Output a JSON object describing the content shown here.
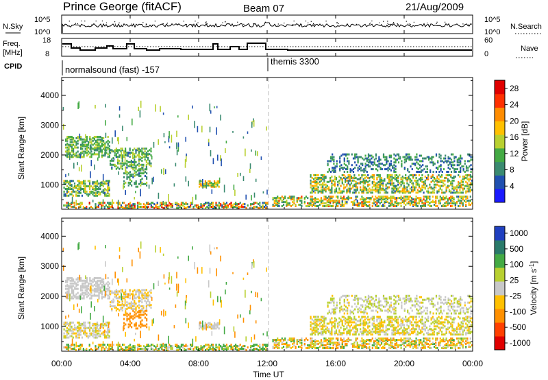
{
  "header": {
    "station": "Prince George (fitACF)",
    "beam": "Beam 07",
    "date": "21/Aug/2009"
  },
  "top_strip": {
    "left_label": "N.Sky",
    "right_label": "N.Search",
    "left_ticks": [
      "10^5",
      "10^0"
    ],
    "right_ticks": [
      "10^5",
      "10^0"
    ]
  },
  "freq_strip": {
    "left_label_1": "Freq.",
    "left_label_2": "[MHz]",
    "left_ticks": [
      "18",
      "8"
    ],
    "right_label": "Nave",
    "right_ticks": [
      "60",
      "0"
    ]
  },
  "cpid": {
    "label": "CPID",
    "segments": [
      {
        "text": "normalsound (fast) -157",
        "start_hour": 0
      },
      {
        "text": "themis 3300",
        "start_hour": 12
      }
    ]
  },
  "colors": {
    "scale": [
      "#1a1aff",
      "#2050b0",
      "#3a8a70",
      "#44aa44",
      "#b8d030",
      "#ffc000",
      "#ff8c00",
      "#ff3000",
      "#e00000"
    ],
    "velocity": [
      "#e00000",
      "#ff4000",
      "#ff9000",
      "#ffc000",
      "#c8c8c8",
      "#b8d030",
      "#44aa44",
      "#2a7a6a",
      "#2040c0"
    ]
  },
  "chart_data": [
    {
      "type": "heatmap",
      "title": "",
      "xlabel": "Time UT",
      "ylabel": "Slant Range [km]",
      "x_range_hours": [
        0,
        24
      ],
      "ylim": [
        180,
        4600
      ],
      "x_ticks": [
        "00:00",
        "04:00",
        "08:00",
        "12:00",
        "16:00",
        "20:00",
        "00:00"
      ],
      "y_ticks": [
        "1000",
        "2000",
        "3000",
        "4000"
      ],
      "colorbar": {
        "label": "Power [dB]",
        "ticks": [
          "4",
          "8",
          "12",
          "16",
          "20",
          "24",
          "28"
        ],
        "range": [
          0,
          30
        ]
      }
    },
    {
      "type": "heatmap",
      "title": "",
      "xlabel": "Time UT",
      "ylabel": "Slant Range [km]",
      "x_range_hours": [
        0,
        24
      ],
      "ylim": [
        180,
        4600
      ],
      "x_ticks": [
        "00:00",
        "04:00",
        "08:00",
        "12:00",
        "16:00",
        "20:00",
        "00:00"
      ],
      "y_ticks": [
        "1000",
        "2000",
        "3000",
        "4000"
      ],
      "colorbar": {
        "label": "Velocity [m s^-1]",
        "ticks": [
          "1000",
          "500",
          "100",
          "25",
          "-25",
          "-100",
          "-500",
          "-1000"
        ]
      }
    }
  ],
  "scatter_regions": [
    {
      "t0": 0.2,
      "t1": 2.8,
      "r0": 1900,
      "r1": 2600,
      "p": 0.55,
      "power": [
        8,
        16
      ],
      "vel": [
        -25,
        25
      ]
    },
    {
      "t0": 0.1,
      "t1": 2.8,
      "r0": 600,
      "r1": 1100,
      "p": 0.5,
      "power": [
        6,
        18
      ],
      "vel": [
        -40,
        40
      ]
    },
    {
      "t0": 2.8,
      "t1": 5.2,
      "r0": 1500,
      "r1": 2200,
      "p": 0.45,
      "power": [
        6,
        16
      ],
      "vel": [
        -60,
        20
      ]
    },
    {
      "t0": 3.6,
      "t1": 5.0,
      "r0": 900,
      "r1": 1500,
      "p": 0.35,
      "power": [
        6,
        14
      ],
      "vel": [
        -500,
        -100
      ]
    },
    {
      "t0": 8.0,
      "t1": 9.2,
      "r0": 900,
      "r1": 1100,
      "p": 0.7,
      "power": [
        10,
        22
      ],
      "vel": [
        -30,
        30
      ]
    },
    {
      "t0": 12.3,
      "t1": 24,
      "r0": 250,
      "r1": 600,
      "p": 0.5,
      "power": [
        6,
        24
      ],
      "vel": [
        -200,
        150
      ]
    },
    {
      "t0": 14.5,
      "t1": 24,
      "r0": 700,
      "r1": 1300,
      "p": 0.45,
      "power": [
        6,
        22
      ],
      "vel": [
        -100,
        100
      ]
    },
    {
      "t0": 15.5,
      "t1": 24,
      "r0": 1400,
      "r1": 2000,
      "p": 0.3,
      "power": [
        4,
        12
      ],
      "vel": [
        -30,
        60
      ]
    },
    {
      "t0": 0,
      "t1": 12,
      "r0": 180,
      "r1": 400,
      "p": 0.45,
      "power": [
        4,
        28
      ],
      "vel": [
        -200,
        300
      ]
    }
  ]
}
